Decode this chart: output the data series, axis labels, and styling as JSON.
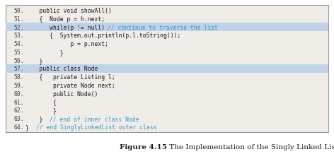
{
  "figsize": [
    4.72,
    2.26
  ],
  "dpi": 100,
  "caption_bold": "Figure 4.15",
  "caption_normal": " The Implementation of the Singly Linked List Structure",
  "caption_color": "#1a1a1a",
  "caption_bold_color": "#1a1a1a",
  "box_bg": "#f0ede8",
  "box_border": "#999999",
  "code_lines": [
    {
      "num": "50.",
      "code": "    public void showAll()",
      "highlight": false,
      "comment": ""
    },
    {
      "num": "51.",
      "code": "    {  Node p = h.next;",
      "highlight": false,
      "comment": ""
    },
    {
      "num": "52.",
      "code": "       while(p != null)",
      "highlight": true,
      "comment": " // continue to traverse the list"
    },
    {
      "num": "53.",
      "code": "       {  System.out.println(p.l.toString());",
      "highlight": false,
      "comment": ""
    },
    {
      "num": "54.",
      "code": "             p = p.next;",
      "highlight": false,
      "comment": ""
    },
    {
      "num": "55.",
      "code": "          }",
      "highlight": false,
      "comment": ""
    },
    {
      "num": "56.",
      "code": "    }",
      "highlight": false,
      "comment": ""
    },
    {
      "num": "57.",
      "code": "    public class Node",
      "highlight": true,
      "comment": ""
    },
    {
      "num": "58.",
      "code": "    {   private Listing l;",
      "highlight": false,
      "comment": ""
    },
    {
      "num": "59.",
      "code": "        private Node next;",
      "highlight": false,
      "comment": ""
    },
    {
      "num": "60.",
      "code": "        public Node()",
      "highlight": false,
      "comment": ""
    },
    {
      "num": "61.",
      "code": "        {",
      "highlight": false,
      "comment": ""
    },
    {
      "num": "62.",
      "code": "        }",
      "highlight": false,
      "comment": ""
    },
    {
      "num": "63.",
      "code": "    } ",
      "highlight": false,
      "comment": " // end of inner class Node"
    },
    {
      "num": "64.",
      "code": "} ",
      "highlight": false,
      "comment": " // end SinglyLinkedList outer class"
    }
  ],
  "num_color": "#444444",
  "code_color": "#1a1a1a",
  "highlight_bg": "#bed3e8",
  "comment_color": "#3399cc",
  "font_size": 5.8,
  "caption_font_size": 7.5
}
